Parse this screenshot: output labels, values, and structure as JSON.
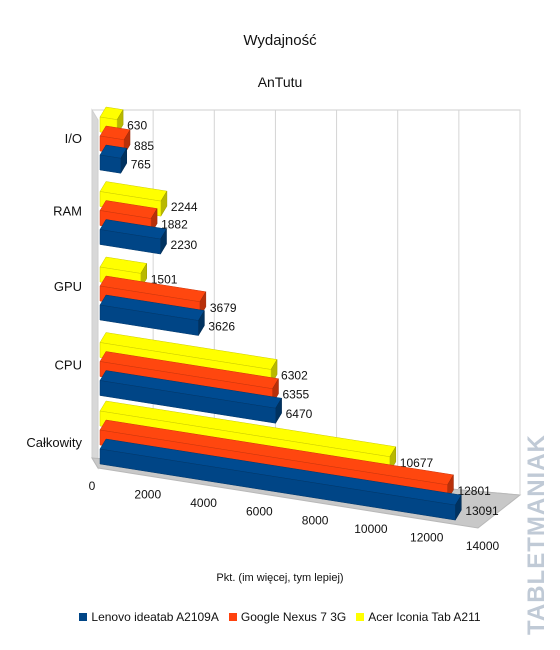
{
  "chart_data": {
    "type": "bar",
    "orientation": "horizontal",
    "style": "3d",
    "title": "Wydajność",
    "subtitle": "AnTutu",
    "xlabel": "Pkt. (im więcej, tym lepiej)",
    "ylabel": "",
    "categories": [
      "I/O",
      "RAM",
      "GPU",
      "CPU",
      "Całkowity"
    ],
    "x_ticks": [
      0,
      2000,
      4000,
      6000,
      8000,
      10000,
      12000,
      14000
    ],
    "xlim": [
      0,
      14000
    ],
    "grid": true,
    "legend_position": "bottom",
    "series": [
      {
        "name": "Acer Iconia Tab A211",
        "color": "#ffff00",
        "values": [
          630,
          2244,
          1501,
          6302,
          10677
        ]
      },
      {
        "name": "Google Nexus 7 3G",
        "color": "#ff420e",
        "values": [
          885,
          1882,
          3679,
          6355,
          12801
        ]
      },
      {
        "name": "Lenovo ideatab A2109A",
        "color": "#004586",
        "values": [
          765,
          2230,
          3626,
          6470,
          13091
        ]
      }
    ]
  },
  "legend": [
    {
      "label": "Lenovo ideatab A2109A",
      "color": "#004586"
    },
    {
      "label": "Google Nexus 7 3G",
      "color": "#ff420e"
    },
    {
      "label": "Acer Iconia Tab A211",
      "color": "#ffff00"
    }
  ],
  "watermark": {
    "text": "TABLETMANIAK",
    "color": "#8ea0b6"
  }
}
